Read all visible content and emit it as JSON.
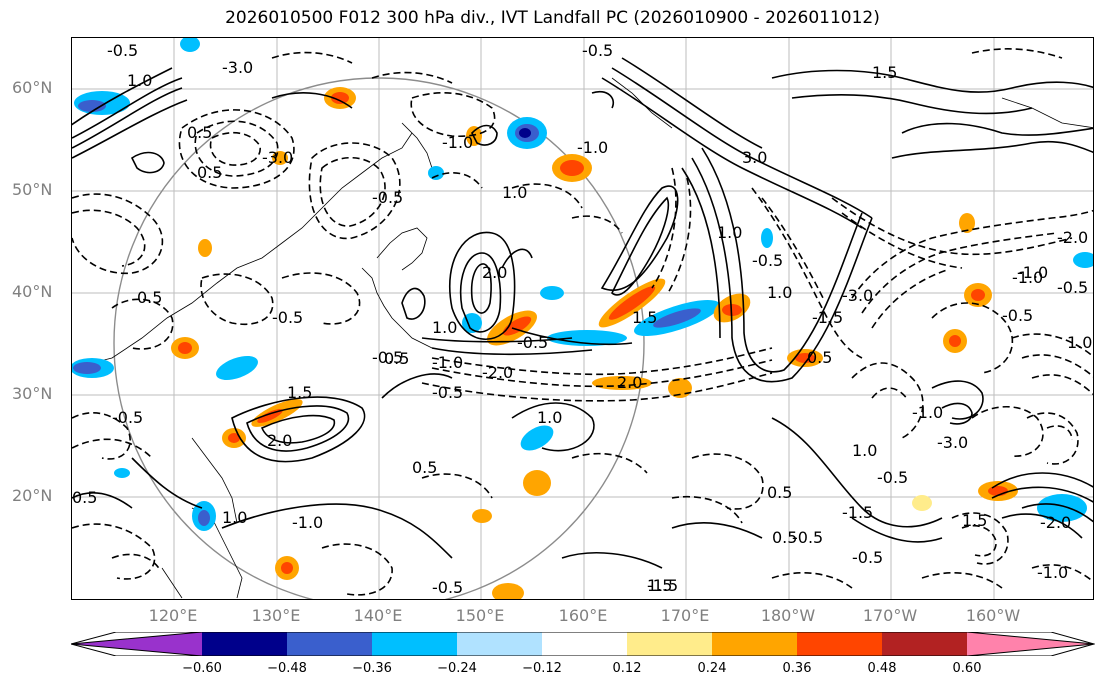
{
  "title": "2026010500 F012 300 hPa div., IVT Landfall PC (2026010900 - 2026011012)",
  "lat_labels": [
    "60°N",
    "50°N",
    "40°N",
    "30°N",
    "20°N"
  ],
  "lon_labels": [
    "120°E",
    "130°E",
    "140°E",
    "150°E",
    "160°E",
    "170°E",
    "180°W",
    "170°W",
    "160°W"
  ],
  "colorbar": {
    "colors": [
      "#9932cc",
      "#00008b",
      "#3a5fcd",
      "#00bfff",
      "#b0e2ff",
      "#ffffff",
      "#ffec8b",
      "#ffa500",
      "#ff4500",
      "#b22222",
      "#ff82ab"
    ],
    "ticks": [
      "−0.60",
      "−0.48",
      "−0.36",
      "−0.24",
      "−0.12",
      "0.12",
      "0.24",
      "0.36",
      "0.48",
      "0.60"
    ]
  },
  "contour_labels": [
    "-0.5",
    "-3.0",
    "1.0",
    "-0.5",
    "-3.0",
    "0.5",
    "3.0",
    "1.5",
    "-1.0",
    "0.5",
    "-0.5",
    "1.0",
    "-2.0",
    "0.5",
    "-1.0",
    "-0.5",
    "1.0",
    "2.0",
    "-0.5",
    "-0.5",
    "-1.5",
    "1.5",
    "-2.0",
    "-0.5",
    "0.5",
    "-1.0",
    "1.0",
    "-0.5",
    "0.5",
    "2.0",
    "1.5",
    "-0.5",
    "-1.0",
    "0.5",
    "-1.5",
    "-0.5",
    "0.5",
    "1.0",
    "-1.5",
    "0.5",
    "-0.5",
    "-3.0",
    "-1.0",
    "1.0",
    "-0.5",
    "1.0",
    "2.0",
    "0.5",
    "1.5",
    "-2.0",
    "1.0",
    "-1.0",
    "-3.0",
    "-0.5",
    "-1.0",
    "1.5",
    "-1.0",
    "-0.5",
    "1.0",
    "-0.5"
  ],
  "icons": [
    "projection-circle"
  ]
}
